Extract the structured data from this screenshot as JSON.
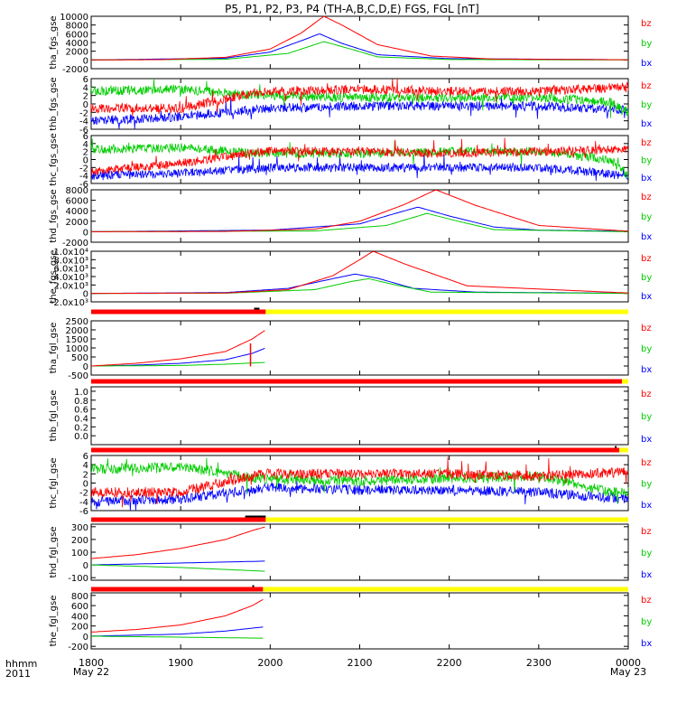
{
  "chart_data": {
    "type": "line",
    "title": "P5, P1, P2, P3, P4 (TH-A,B,C,D,E) FGS, FGL [nT]",
    "xaxis": {
      "label_left_1": "hhmm",
      "label_left_2": "2011",
      "ticks": [
        "1800",
        "1900",
        "2000",
        "2100",
        "2200",
        "2300",
        "0000"
      ],
      "tick_hours": [
        0,
        1,
        2,
        3,
        4,
        5,
        6
      ],
      "date_start": "May 22",
      "date_end": "May 23",
      "range_hours": [
        0,
        6
      ]
    },
    "colors": {
      "bx": "#0000ff",
      "by": "#00cc00",
      "bz": "#ff0000",
      "bar_red": "#ff0000",
      "bar_yellow": "#ffff00",
      "bar_black": "#000000"
    },
    "legend": [
      "bz",
      "by",
      "bx"
    ],
    "panels": [
      {
        "ylabel": "tha_fgs_gse",
        "ylim": [
          -2000,
          10000
        ],
        "ticks": [
          "10000",
          "8000",
          "6000",
          "4000",
          "2000",
          "0",
          "-2000"
        ],
        "tick_values": [
          10000,
          8000,
          6000,
          4000,
          2000,
          0,
          -2000
        ],
        "kind": "peak",
        "series": {
          "bz": {
            "x": [
              0,
              0.8,
              1.5,
              2.0,
              2.35,
              2.6,
              2.8,
              3.2,
              3.8,
              4.5,
              6.0
            ],
            "y": [
              0,
              80,
              600,
              2500,
              6200,
              10000,
              8000,
              3500,
              900,
              200,
              50
            ]
          },
          "bx": {
            "x": [
              0,
              1.5,
              2.0,
              2.4,
              2.55,
              2.8,
              3.2,
              4.0,
              6.0
            ],
            "y": [
              0,
              400,
              1800,
              4800,
              6000,
              3800,
              1200,
              300,
              50
            ]
          },
          "by": {
            "x": [
              0,
              1.5,
              2.2,
              2.6,
              2.9,
              3.2,
              4.0,
              6.0
            ],
            "y": [
              0,
              150,
              1500,
              4200,
              2500,
              700,
              100,
              0
            ]
          }
        }
      },
      {
        "ylabel": "thb_fgs_gse",
        "ylim": [
          -6,
          6
        ],
        "ticks": [
          "6",
          "4",
          "2",
          "0",
          "-2",
          "-4",
          "-6"
        ],
        "tick_values": [
          6,
          4,
          2,
          0,
          -2,
          -4,
          -6
        ],
        "kind": "noise",
        "series": {
          "bz": {
            "x": [
              0,
              1.0,
              1.9,
              3.0,
              4.0,
              5.0,
              6.0
            ],
            "y": [
              -1,
              -1,
              3,
              3.5,
              3,
              3,
              4
            ]
          },
          "by": {
            "x": [
              0,
              1.0,
              1.9,
              3.0,
              4.0,
              5.0,
              5.8,
              6.0
            ],
            "y": [
              3,
              3.5,
              2,
              1.5,
              1.5,
              1.5,
              0.5,
              -2
            ]
          },
          "bx": {
            "x": [
              0,
              1.0,
              2.0,
              3.0,
              4.0,
              5.0,
              6.0
            ],
            "y": [
              -4,
              -3,
              -1,
              -0.5,
              -0.5,
              -0.5,
              -1.5
            ]
          }
        }
      },
      {
        "ylabel": "thc_fgs_gse",
        "ylim": [
          -6,
          6
        ],
        "ticks": [
          "6",
          "4",
          "2",
          "0",
          "-2",
          "-4",
          "-6"
        ],
        "tick_values": [
          6,
          4,
          2,
          0,
          -2,
          -4,
          -6
        ],
        "kind": "noise",
        "series": {
          "bz": {
            "x": [
              0,
              1.0,
              1.9,
              3.0,
              4.0,
              5.0,
              6.0
            ],
            "y": [
              -3,
              -1,
              2,
              2,
              1.5,
              2,
              2.5
            ]
          },
          "by": {
            "x": [
              0,
              1.0,
              1.9,
              3.0,
              4.0,
              5.0,
              5.8,
              6.0
            ],
            "y": [
              2.5,
              3,
              1.5,
              1.5,
              2,
              2,
              0,
              -4
            ]
          },
          "bx": {
            "x": [
              0,
              1.0,
              2.0,
              3.0,
              4.0,
              5.0,
              6.0
            ],
            "y": [
              -4,
              -3.5,
              -2,
              -2,
              -2,
              -2,
              -4
            ]
          }
        }
      },
      {
        "ylabel": "thd_fgs_gse",
        "ylim": [
          -2000,
          8000
        ],
        "ticks": [
          "8000",
          "6000",
          "4000",
          "2000",
          "0",
          "-2000"
        ],
        "tick_values": [
          8000,
          6000,
          4000,
          2000,
          0,
          -2000
        ],
        "kind": "peak",
        "series": {
          "bz": {
            "x": [
              0,
              1.5,
              2.5,
              3.0,
              3.5,
              3.85,
              4.3,
              5.0,
              6.0
            ],
            "y": [
              0,
              60,
              500,
              2000,
              5200,
              8000,
              5000,
              1200,
              100
            ]
          },
          "bx": {
            "x": [
              0,
              2.0,
              3.0,
              3.4,
              3.65,
              4.0,
              4.5,
              5.0,
              6.0
            ],
            "y": [
              0,
              300,
              1500,
              3500,
              4700,
              3000,
              900,
              300,
              100
            ]
          },
          "by": {
            "x": [
              0,
              2.5,
              3.3,
              3.75,
              4.1,
              4.5,
              6.0
            ],
            "y": [
              0,
              150,
              1200,
              3500,
              2000,
              400,
              0
            ]
          }
        }
      },
      {
        "ylabel": "the_fgs_gse",
        "ylim": [
          -2000,
          10000
        ],
        "ticks": [
          "1.0x10⁴",
          "8.0x10³",
          "6.0x10³",
          "4.0x10³",
          "2.0x10³",
          "0",
          "-2.0x10³"
        ],
        "tick_values": [
          10000,
          8000,
          6000,
          4000,
          2000,
          0,
          -2000
        ],
        "kind": "peak",
        "series": {
          "bz": {
            "x": [
              0,
              1.5,
              2.2,
              2.7,
              3.0,
              3.15,
              3.5,
              4.2,
              6.0
            ],
            "y": [
              0,
              100,
              900,
              4200,
              8000,
              10000,
              7000,
              1800,
              100
            ]
          },
          "bx": {
            "x": [
              0,
              1.5,
              2.2,
              2.7,
              2.95,
              3.2,
              3.6,
              4.3,
              6.0
            ],
            "y": [
              0,
              200,
              1200,
              3500,
              4600,
              3600,
              1200,
              300,
              50
            ]
          },
          "by": {
            "x": [
              0,
              1.5,
              2.5,
              2.9,
              3.1,
              3.4,
              3.8,
              6.0
            ],
            "y": [
              0,
              50,
              900,
              2800,
              3500,
              2000,
              300,
              0
            ]
          }
        }
      },
      {
        "ylabel": "tha_fgl_gse",
        "ylim": [
          -500,
          2500
        ],
        "ticks": [
          "2500",
          "2000",
          "1500",
          "1000",
          "500",
          "0",
          "-500"
        ],
        "tick_values": [
          2500,
          2000,
          1500,
          1000,
          500,
          0,
          -500
        ],
        "kind": "rise",
        "bar": {
          "red_hours": [
            0,
            1.95
          ],
          "yellow_hours": [
            1.95,
            6.0
          ],
          "black_hours": [
            1.82,
            1.88
          ]
        },
        "series": {
          "bz": {
            "x": [
              0,
              0.5,
              1.0,
              1.5,
              1.8,
              1.95
            ],
            "y": [
              0,
              150,
              400,
              800,
              1500,
              2000
            ]
          },
          "bx": {
            "x": [
              0,
              0.5,
              1.0,
              1.5,
              1.8,
              1.95
            ],
            "y": [
              0,
              50,
              150,
              350,
              700,
              1000
            ]
          },
          "by": {
            "x": [
              0,
              1.0,
              1.5,
              1.95
            ],
            "y": [
              0,
              30,
              100,
              200
            ]
          }
        }
      },
      {
        "ylabel": "thb_fgl_gse",
        "ylim": [
          -0.2,
          1.1
        ],
        "ticks": [
          "1.0",
          "0.8",
          "0.6",
          "0.4",
          "0.2",
          "0.0"
        ],
        "tick_values": [
          1.0,
          0.8,
          0.6,
          0.4,
          0.2,
          0.0
        ],
        "kind": "empty",
        "bar": {
          "red_hours": [
            0,
            5.93
          ],
          "yellow_hours": [
            5.93,
            6.0
          ],
          "black_hours": []
        },
        "series": {}
      },
      {
        "ylabel": "thc_fgl_gse",
        "ylim": [
          -6,
          6
        ],
        "ticks": [
          "6",
          "4",
          "2",
          "0",
          "-2",
          "-4",
          "-6"
        ],
        "tick_values": [
          6,
          4,
          2,
          0,
          -2,
          -4,
          -6
        ],
        "kind": "noise",
        "bar": {
          "red_hours": [
            0,
            5.9
          ],
          "yellow_hours": [
            5.9,
            6.0
          ],
          "black_hours": [
            5.85,
            5.87
          ]
        },
        "series": {
          "bz": {
            "x": [
              0,
              1.0,
              1.9,
              3.0,
              4.0,
              5.0,
              6.0
            ],
            "y": [
              -2,
              -2,
              2,
              2,
              2,
              1.5,
              2.5
            ]
          },
          "by": {
            "x": [
              0,
              1.0,
              1.9,
              3.0,
              4.0,
              5.0,
              5.8,
              6.0
            ],
            "y": [
              3,
              3.5,
              1,
              0.5,
              1,
              1.5,
              -2,
              -2
            ]
          },
          "bx": {
            "x": [
              0,
              1.0,
              2.0,
              3.0,
              4.0,
              5.0,
              6.0
            ],
            "y": [
              -4,
              -3.5,
              -1,
              -1.5,
              -1.5,
              -2,
              -3.5
            ]
          }
        }
      },
      {
        "ylabel": "thd_fgl_gse",
        "ylim": [
          -120,
          320
        ],
        "ticks": [
          "300",
          "200",
          "100",
          "0",
          "-100"
        ],
        "tick_values": [
          300,
          200,
          100,
          0,
          -100
        ],
        "kind": "rise",
        "bar": {
          "red_hours": [
            0,
            1.95
          ],
          "yellow_hours": [
            1.95,
            6.0
          ],
          "black_hours": [
            1.72,
            1.95
          ]
        },
        "series": {
          "bz": {
            "x": [
              0,
              0.5,
              1.0,
              1.5,
              1.8,
              1.95
            ],
            "y": [
              50,
              80,
              130,
              200,
              270,
              300
            ]
          },
          "bx": {
            "x": [
              0,
              1.0,
              1.95
            ],
            "y": [
              0,
              15,
              30
            ]
          },
          "by": {
            "x": [
              0,
              1.0,
              1.95
            ],
            "y": [
              0,
              -20,
              -50
            ]
          }
        }
      },
      {
        "ylabel": "the_fgl_gse",
        "ylim": [
          -250,
          850
        ],
        "ticks": [
          "800",
          "600",
          "400",
          "200",
          "0",
          "-200"
        ],
        "tick_values": [
          800,
          600,
          400,
          200,
          0,
          -200
        ],
        "kind": "rise",
        "bar": {
          "red_hours": [
            0,
            1.92
          ],
          "yellow_hours": [
            1.92,
            6.0
          ],
          "black_hours": [
            1.8,
            1.82
          ]
        },
        "series": {
          "bz": {
            "x": [
              0,
              0.5,
              1.0,
              1.5,
              1.8,
              1.92
            ],
            "y": [
              80,
              130,
              220,
              400,
              600,
              720
            ]
          },
          "bx": {
            "x": [
              0,
              1.0,
              1.5,
              1.92
            ],
            "y": [
              0,
              40,
              100,
              180
            ]
          },
          "by": {
            "x": [
              0,
              1.0,
              1.92
            ],
            "y": [
              0,
              -20,
              -40
            ]
          }
        }
      }
    ]
  }
}
